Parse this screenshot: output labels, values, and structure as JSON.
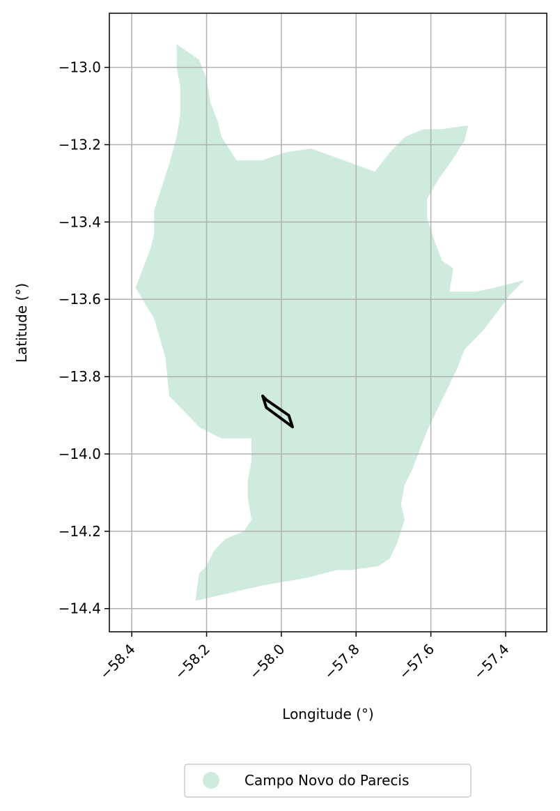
{
  "map": {
    "xlabel": "Longitude (°)",
    "ylabel": "Latitude (°)",
    "xlim": [
      -58.46,
      -57.29
    ],
    "ylim": [
      -14.46,
      -12.86
    ],
    "xticks": [
      {
        "value": -58.4,
        "label": "−58.4"
      },
      {
        "value": -58.2,
        "label": "−58.2"
      },
      {
        "value": -58.0,
        "label": "−58.0"
      },
      {
        "value": -57.8,
        "label": "−57.8"
      },
      {
        "value": -57.6,
        "label": "−57.6"
      },
      {
        "value": -57.4,
        "label": "−57.4"
      }
    ],
    "yticks": [
      {
        "value": -13.0,
        "label": "−13.0"
      },
      {
        "value": -13.2,
        "label": "−13.2"
      },
      {
        "value": -13.4,
        "label": "−13.4"
      },
      {
        "value": -13.6,
        "label": "−13.6"
      },
      {
        "value": -13.8,
        "label": "−13.8"
      },
      {
        "value": -14.0,
        "label": "−14.0"
      },
      {
        "value": -14.2,
        "label": "−14.2"
      },
      {
        "value": -14.4,
        "label": "−14.4"
      }
    ],
    "grid": true,
    "legend": {
      "placement": "bottom-center",
      "entries": [
        {
          "label": "Campo Novo do Parecis",
          "color": "#cfebdd"
        }
      ]
    },
    "colors": {
      "region_fill": "#cfebdd",
      "outline": "#000000",
      "grid": "#b0b0b0"
    }
  },
  "chart_data": {
    "type": "map",
    "xlabel": "Longitude (°)",
    "ylabel": "Latitude (°)",
    "xlim": [
      -58.46,
      -57.29
    ],
    "ylim": [
      -14.46,
      -12.86
    ],
    "grid": true,
    "region": {
      "name": "Campo Novo do Parecis",
      "boundary_lon_lat": [
        [
          -58.23,
          -14.38
        ],
        [
          -58.22,
          -14.31
        ],
        [
          -58.2,
          -14.29
        ],
        [
          -58.18,
          -14.25
        ],
        [
          -58.15,
          -14.22
        ],
        [
          -58.1,
          -14.2
        ],
        [
          -58.08,
          -14.17
        ],
        [
          -58.09,
          -14.11
        ],
        [
          -58.09,
          -14.07
        ],
        [
          -58.08,
          -14.02
        ],
        [
          -58.08,
          -13.96
        ],
        [
          -58.16,
          -13.96
        ],
        [
          -58.22,
          -13.93
        ],
        [
          -58.26,
          -13.89
        ],
        [
          -58.3,
          -13.85
        ],
        [
          -58.31,
          -13.75
        ],
        [
          -58.34,
          -13.65
        ],
        [
          -58.39,
          -13.57
        ],
        [
          -58.37,
          -13.52
        ],
        [
          -58.35,
          -13.47
        ],
        [
          -58.34,
          -13.43
        ],
        [
          -58.34,
          -13.37
        ],
        [
          -58.32,
          -13.31
        ],
        [
          -58.3,
          -13.25
        ],
        [
          -58.28,
          -13.18
        ],
        [
          -58.27,
          -13.12
        ],
        [
          -58.27,
          -13.05
        ],
        [
          -58.28,
          -13.0
        ],
        [
          -58.28,
          -12.94
        ],
        [
          -58.25,
          -12.96
        ],
        [
          -58.22,
          -12.98
        ],
        [
          -58.2,
          -13.03
        ],
        [
          -58.19,
          -13.09
        ],
        [
          -58.17,
          -13.14
        ],
        [
          -58.16,
          -13.18
        ],
        [
          -58.14,
          -13.21
        ],
        [
          -58.12,
          -13.24
        ],
        [
          -58.05,
          -13.24
        ],
        [
          -57.99,
          -13.22
        ],
        [
          -57.92,
          -13.21
        ],
        [
          -57.75,
          -13.27
        ],
        [
          -57.71,
          -13.22
        ],
        [
          -57.67,
          -13.18
        ],
        [
          -57.62,
          -13.16
        ],
        [
          -57.57,
          -13.16
        ],
        [
          -57.5,
          -13.15
        ],
        [
          -57.51,
          -13.19
        ],
        [
          -57.55,
          -13.25
        ],
        [
          -57.58,
          -13.29
        ],
        [
          -57.61,
          -13.34
        ],
        [
          -57.61,
          -13.39
        ],
        [
          -57.59,
          -13.45
        ],
        [
          -57.57,
          -13.5
        ],
        [
          -57.54,
          -13.52
        ],
        [
          -57.55,
          -13.58
        ],
        [
          -57.48,
          -13.58
        ],
        [
          -57.43,
          -13.57
        ],
        [
          -57.35,
          -13.55
        ],
        [
          -57.39,
          -13.59
        ],
        [
          -57.42,
          -13.63
        ],
        [
          -57.46,
          -13.68
        ],
        [
          -57.51,
          -13.73
        ],
        [
          -57.53,
          -13.78
        ],
        [
          -57.58,
          -13.88
        ],
        [
          -57.61,
          -13.94
        ],
        [
          -57.63,
          -13.99
        ],
        [
          -57.65,
          -14.04
        ],
        [
          -57.67,
          -14.08
        ],
        [
          -57.68,
          -14.13
        ],
        [
          -57.67,
          -14.17
        ],
        [
          -57.69,
          -14.23
        ],
        [
          -57.71,
          -14.27
        ],
        [
          -57.74,
          -14.29
        ],
        [
          -57.81,
          -14.3
        ],
        [
          -57.85,
          -14.3
        ],
        [
          -57.93,
          -14.32
        ],
        [
          -58.05,
          -14.34
        ],
        [
          -58.23,
          -14.38
        ]
      ]
    },
    "outline_lon_lat": [
      [
        -58.05,
        -13.85
      ],
      [
        -58.04,
        -13.86
      ],
      [
        -57.98,
        -13.9
      ],
      [
        -57.97,
        -13.93
      ],
      [
        -58.04,
        -13.88
      ],
      [
        -58.05,
        -13.85
      ]
    ],
    "legend": [
      {
        "label": "Campo Novo do Parecis",
        "color": "#cfebdd"
      }
    ]
  }
}
